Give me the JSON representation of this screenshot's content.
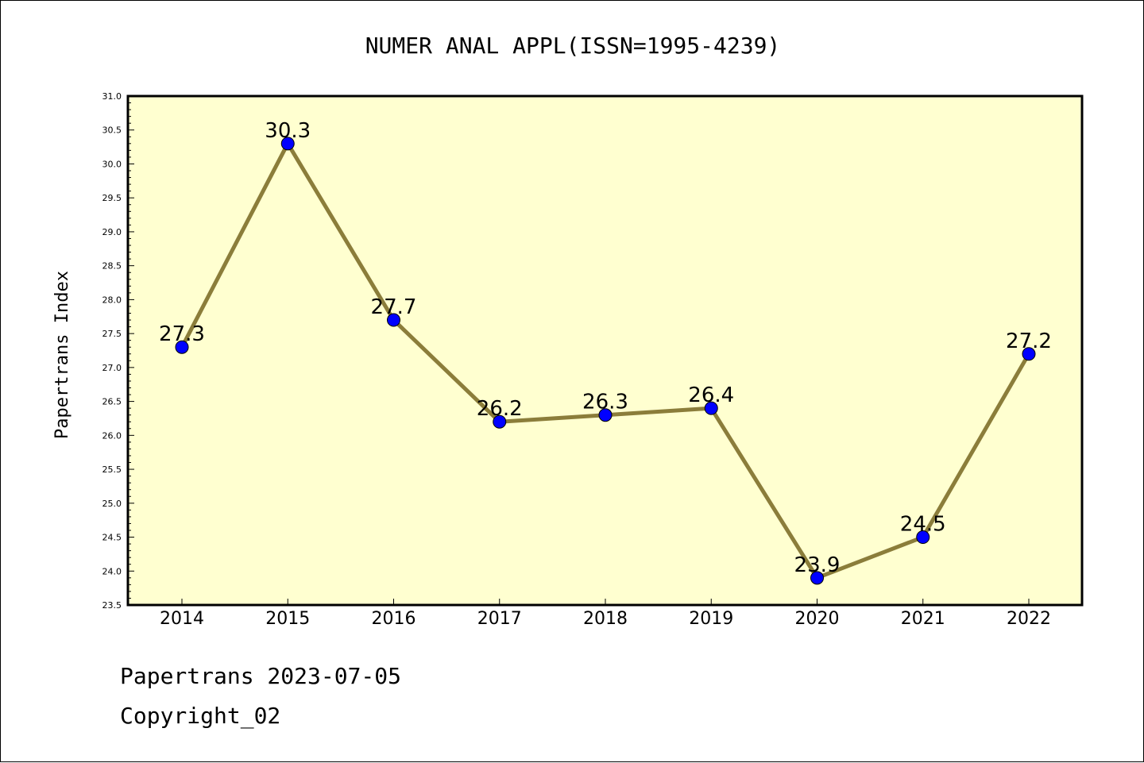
{
  "chart_data": {
    "type": "line",
    "title": "NUMER ANAL APPL(ISSN=1995-4239)",
    "ylabel": "Papertrans Index",
    "xlabel": "",
    "categories": [
      "2014",
      "2015",
      "2016",
      "2017",
      "2018",
      "2019",
      "2020",
      "2021",
      "2022"
    ],
    "values": [
      27.3,
      30.3,
      27.7,
      26.2,
      26.3,
      26.4,
      23.9,
      24.5,
      27.2
    ],
    "value_labels": [
      "27.3",
      "30.3",
      "27.7",
      "26.2",
      "26.3",
      "26.4",
      "23.9",
      "24.5",
      "27.2"
    ],
    "ylim": [
      23.5,
      31.0
    ],
    "yticks": [
      "23.5",
      "24.0",
      "24.5",
      "25.0",
      "25.5",
      "26.0",
      "26.5",
      "27.0",
      "27.5",
      "28.0",
      "28.5",
      "29.0",
      "29.5",
      "30.0",
      "30.5",
      "31.0"
    ],
    "grid": false,
    "colors": {
      "plot_bg": "#ffffd0",
      "line": "#8b7d3a",
      "marker": "#0000ff"
    }
  },
  "footer": {
    "line1": "Papertrans 2023-07-05",
    "line2": "Copyright_02"
  }
}
